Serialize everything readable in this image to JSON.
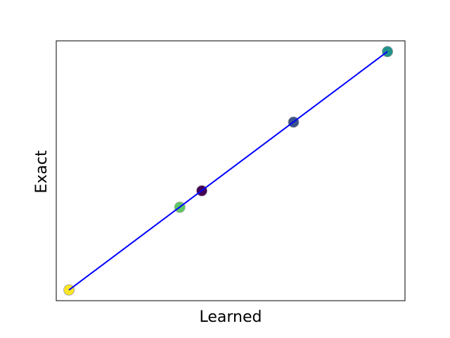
{
  "chart_data": {
    "type": "scatter",
    "xlabel": "Learned",
    "ylabel": "Exact",
    "grid": false,
    "ticks_visible": false,
    "xlim": [
      -0.04,
      1.055
    ],
    "ylim": [
      -0.045,
      1.045
    ],
    "points": [
      {
        "x": 0.0,
        "y": 0.0,
        "color": "#fde725"
      },
      {
        "x": 0.348,
        "y": 0.347,
        "color": "#5ec962"
      },
      {
        "x": 0.417,
        "y": 0.416,
        "color": "#440154"
      },
      {
        "x": 0.705,
        "y": 0.704,
        "color": "#3b528b"
      },
      {
        "x": 1.0,
        "y": 1.0,
        "color": "#21918c"
      }
    ],
    "fit_line": {
      "x": [
        0.0,
        1.0
      ],
      "y": [
        0.0,
        1.0
      ],
      "color": "#0000ff"
    },
    "marker_outline_color": "#9a9a9a"
  }
}
